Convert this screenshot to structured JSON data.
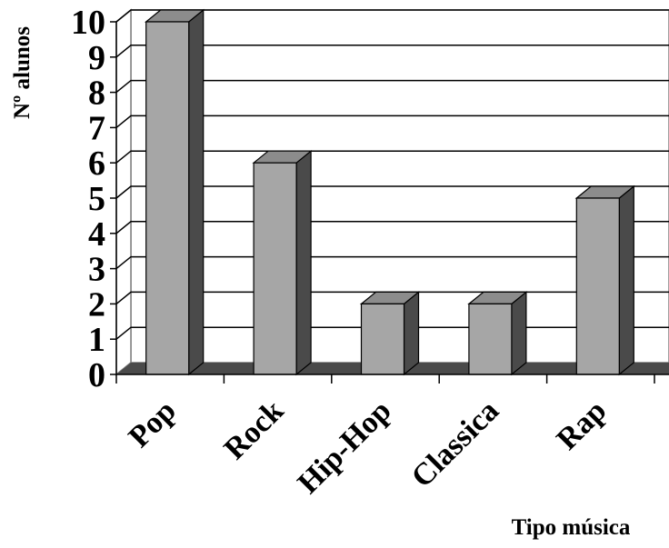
{
  "chart_data": {
    "type": "bar",
    "categories": [
      "Pop",
      "Rock",
      "Hip-Hop",
      "Classica",
      "Rap"
    ],
    "values": [
      10,
      6,
      2,
      2,
      5
    ],
    "xlabel": "Tipo música",
    "ylabel": "Nº alunos",
    "ylim": [
      0,
      10
    ],
    "yticks": [
      0,
      1,
      2,
      3,
      4,
      5,
      6,
      7,
      8,
      9,
      10
    ],
    "grid": true,
    "legend": "none",
    "style": "3d",
    "colors": {
      "bar_front": "#a6a6a6",
      "bar_side": "#4a4a4a",
      "bar_top": "#8c8c8c",
      "floor": "#4a4a4a",
      "back_wall": "#ffffff",
      "grid": "#000000"
    }
  }
}
